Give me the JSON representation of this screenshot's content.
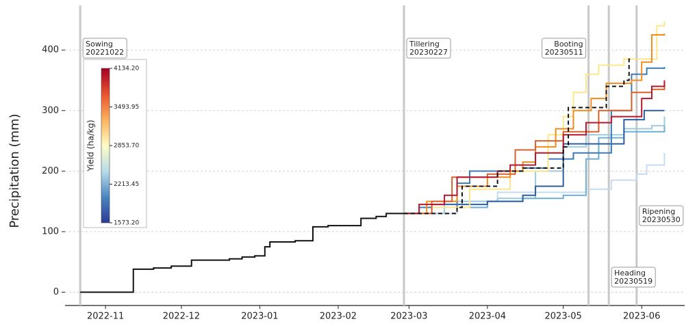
{
  "chart_data": {
    "type": "step",
    "ylabel": "Precipitation (mm)",
    "ylim": [
      -22,
      477
    ],
    "yticks": [
      0,
      100,
      200,
      300,
      400
    ],
    "xlim": [
      "2022-10-16",
      "2023-06-18"
    ],
    "xticks": [
      {
        "value": "2022-11-01",
        "label": "2022-11"
      },
      {
        "value": "2022-12-01",
        "label": "2022-12"
      },
      {
        "value": "2023-01-01",
        "label": "2023-01"
      },
      {
        "value": "2023-02-01",
        "label": "2023-02"
      },
      {
        "value": "2023-03-01",
        "label": "2023-03"
      },
      {
        "value": "2023-04-01",
        "label": "2023-04"
      },
      {
        "value": "2023-05-01",
        "label": "2023-05"
      },
      {
        "value": "2023-06-01",
        "label": "2023-06"
      }
    ],
    "grid": true,
    "events": [
      {
        "name": "Sowing",
        "date": "20221022"
      },
      {
        "name": "Tillering",
        "date": "20230227"
      },
      {
        "name": "Booting",
        "date": "20230511"
      },
      {
        "name": "Heading",
        "date": "20230519"
      },
      {
        "name": "Ripening",
        "date": "20230530"
      }
    ],
    "colorbar": {
      "label": "Yield (ha/kg)",
      "lim": [
        1573.2,
        4134.2
      ],
      "colors": [
        "#2b3c93",
        "#4a86c0",
        "#b7dcea",
        "#fefcc4",
        "#fdb25e",
        "#e8532f",
        "#a50026"
      ],
      "ticks": [
        {
          "value": 1573.2,
          "label": "1573.20"
        },
        {
          "value": 2213.45,
          "label": "2213.45"
        },
        {
          "value": 2853.7,
          "label": "2853.70"
        },
        {
          "value": 3493.95,
          "label": "3493.95"
        },
        {
          "value": 4134.2,
          "label": "4134.20"
        }
      ]
    },
    "series": [
      {
        "color": "#111111",
        "x": [
          "2022-10-22",
          "2022-11-12",
          "2022-11-20",
          "2022-11-27",
          "2022-12-05",
          "2022-12-20",
          "2022-12-25",
          "2022-12-30",
          "2023-01-03",
          "2023-01-05",
          "2023-01-15",
          "2023-01-22",
          "2023-01-28",
          "2023-02-10",
          "2023-02-16",
          "2023-02-20",
          "2023-02-27"
        ],
        "values": [
          0,
          38,
          40,
          43,
          53,
          55,
          58,
          60,
          75,
          83,
          85,
          108,
          110,
          122,
          125,
          130,
          130
        ]
      },
      {
        "color": "#c6dbef",
        "x": [
          "2023-02-27",
          "2023-03-20",
          "2023-04-05",
          "2023-04-25",
          "2023-05-10",
          "2023-05-20",
          "2023-05-30",
          "2023-06-03",
          "2023-06-10"
        ],
        "values": [
          130,
          150,
          165,
          165,
          170,
          185,
          195,
          210,
          230
        ]
      },
      {
        "color": "#9ecae1",
        "x": [
          "2023-02-27",
          "2023-03-15",
          "2023-04-05",
          "2023-04-20",
          "2023-05-01",
          "2023-05-10",
          "2023-05-25",
          "2023-06-05",
          "2023-06-10"
        ],
        "values": [
          130,
          150,
          155,
          200,
          240,
          260,
          270,
          275,
          290
        ]
      },
      {
        "color": "#6baed6",
        "x": [
          "2023-02-27",
          "2023-03-10",
          "2023-04-01",
          "2023-04-15",
          "2023-05-01",
          "2023-05-10",
          "2023-05-15",
          "2023-05-25",
          "2023-06-05",
          "2023-06-10"
        ],
        "values": [
          130,
          140,
          150,
          155,
          160,
          220,
          255,
          265,
          265,
          275
        ]
      },
      {
        "color": "#2c5fa0",
        "x": [
          "2023-02-27",
          "2023-03-10",
          "2023-04-01",
          "2023-04-15",
          "2023-04-20",
          "2023-05-01",
          "2023-05-20",
          "2023-05-25",
          "2023-06-02",
          "2023-06-10"
        ],
        "values": [
          130,
          145,
          150,
          160,
          175,
          245,
          245,
          285,
          300,
          300
        ]
      },
      {
        "color": "#3a7ab8",
        "x": [
          "2023-02-27",
          "2023-03-05",
          "2023-03-20",
          "2023-03-25",
          "2023-04-15",
          "2023-04-25",
          "2023-05-05",
          "2023-05-20",
          "2023-05-28",
          "2023-06-03",
          "2023-06-10"
        ],
        "values": [
          130,
          140,
          180,
          200,
          205,
          220,
          230,
          300,
          360,
          370,
          372
        ]
      },
      {
        "color": "#fde68a",
        "x": [
          "2023-02-27",
          "2023-03-10",
          "2023-03-25",
          "2023-04-10",
          "2023-04-25",
          "2023-05-01",
          "2023-05-05",
          "2023-05-10",
          "2023-05-15",
          "2023-05-25",
          "2023-06-05",
          "2023-06-07",
          "2023-06-10"
        ],
        "values": [
          130,
          140,
          170,
          200,
          260,
          290,
          330,
          360,
          375,
          385,
          385,
          440,
          448
        ]
      },
      {
        "color": "#f08c1e",
        "x": [
          "2023-02-27",
          "2023-03-08",
          "2023-03-20",
          "2023-04-01",
          "2023-04-10",
          "2023-04-15",
          "2023-04-20",
          "2023-04-28",
          "2023-05-05",
          "2023-05-12",
          "2023-05-18",
          "2023-05-28",
          "2023-06-01",
          "2023-06-05",
          "2023-06-10"
        ],
        "values": [
          130,
          150,
          175,
          190,
          200,
          215,
          240,
          270,
          300,
          320,
          345,
          350,
          380,
          425,
          427
        ]
      },
      {
        "color": "#d9602b",
        "x": [
          "2023-02-27",
          "2023-03-10",
          "2023-03-18",
          "2023-04-01",
          "2023-04-12",
          "2023-04-20",
          "2023-05-01",
          "2023-05-15",
          "2023-05-28",
          "2023-06-05",
          "2023-06-10"
        ],
        "values": [
          130,
          150,
          190,
          195,
          235,
          250,
          265,
          300,
          330,
          335,
          345
        ]
      },
      {
        "color": "#b2182b",
        "x": [
          "2023-02-27",
          "2023-03-05",
          "2023-03-15",
          "2023-03-20",
          "2023-04-05",
          "2023-04-10",
          "2023-04-20",
          "2023-05-01",
          "2023-05-10",
          "2023-05-20",
          "2023-06-01",
          "2023-06-05",
          "2023-06-10"
        ],
        "values": [
          130,
          145,
          160,
          190,
          200,
          210,
          230,
          260,
          280,
          290,
          320,
          340,
          350
        ]
      },
      {
        "color": "#111111",
        "dash": true,
        "x": [
          "2023-02-27",
          "2023-03-20",
          "2023-03-22",
          "2023-04-05",
          "2023-04-15",
          "2023-04-25",
          "2023-05-01",
          "2023-05-03",
          "2023-05-10",
          "2023-05-18",
          "2023-05-25",
          "2023-05-27",
          "2023-05-28"
        ],
        "values": [
          130,
          140,
          175,
          200,
          205,
          205,
          240,
          305,
          305,
          340,
          350,
          385,
          385
        ]
      }
    ]
  }
}
